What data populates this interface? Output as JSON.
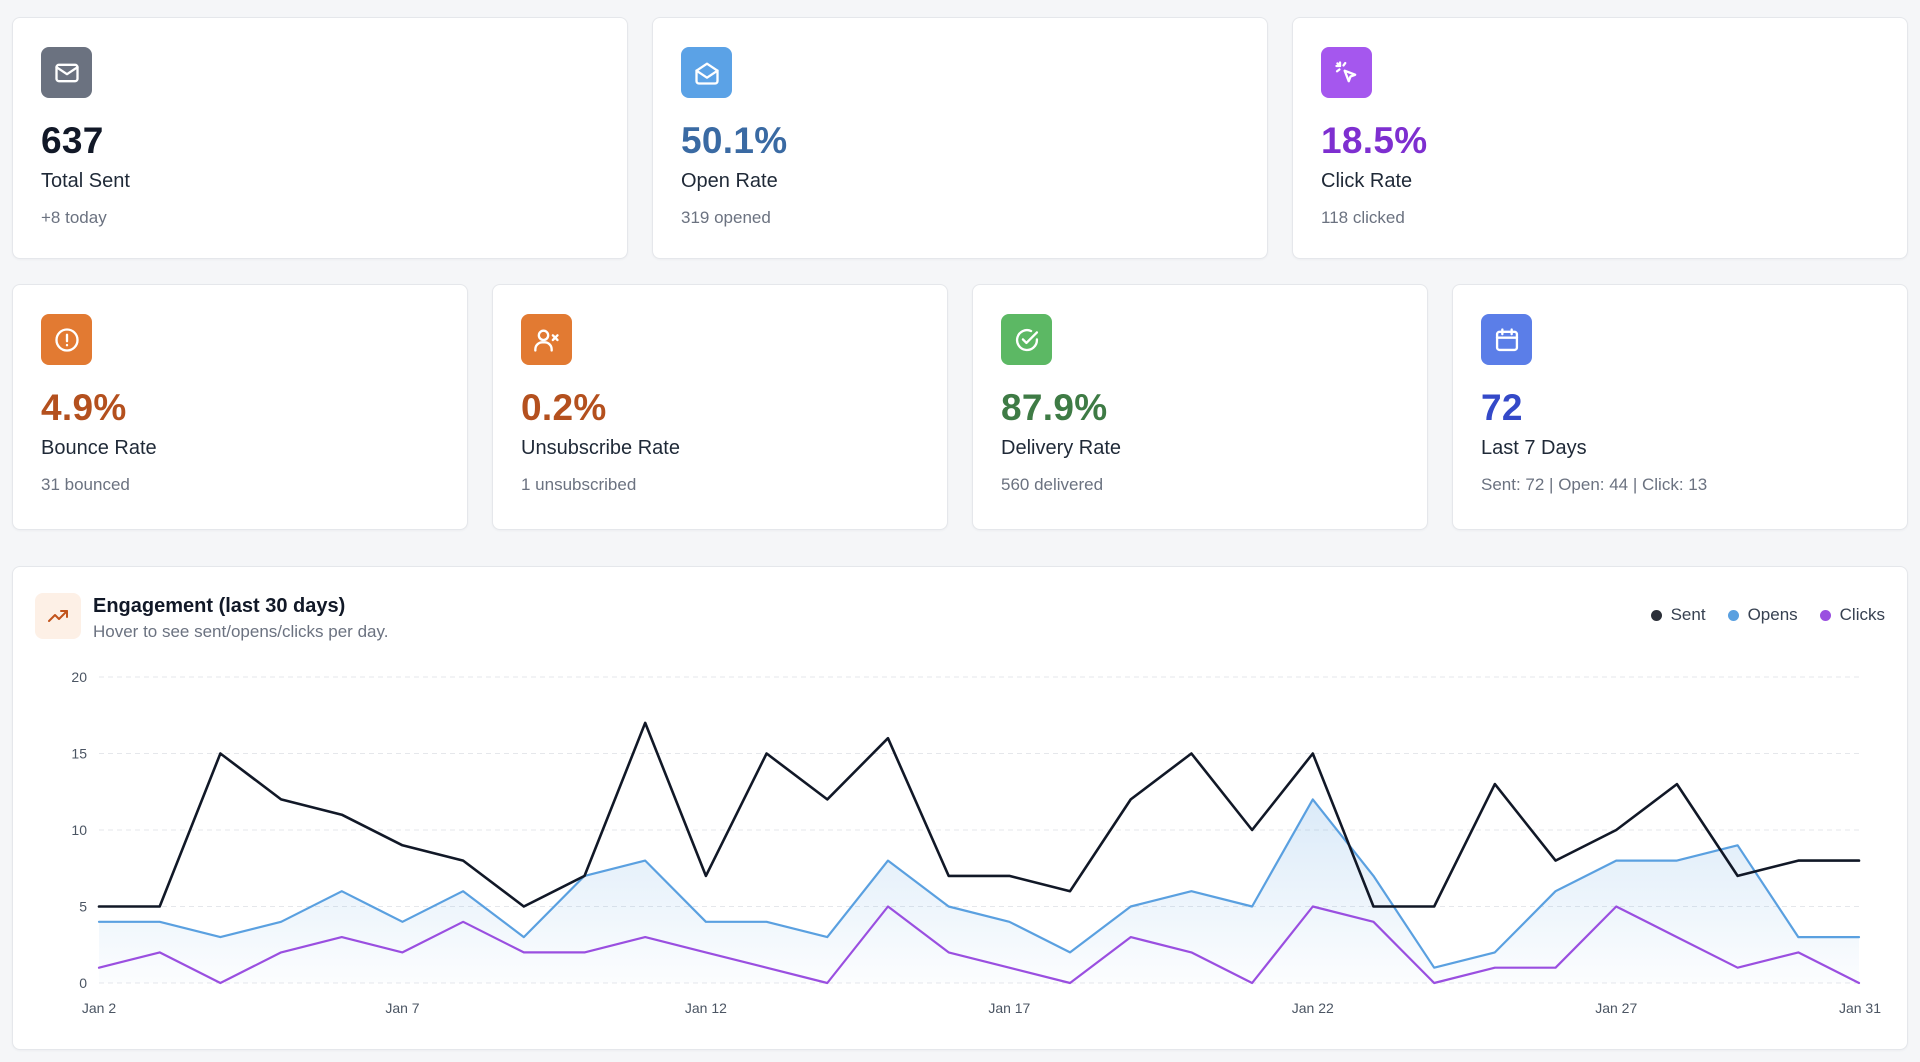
{
  "colors": {
    "total_sent": "#111827",
    "open_rate": "#3a6aa3",
    "click_rate": "#7e2fd0",
    "bounce_rate": "#b4501e",
    "unsubscribe_rate": "#b4501e",
    "delivery_rate": "#3e7b45",
    "last7": "#3449c8",
    "sent_line": "#111827",
    "opens_line": "#5aa0e0",
    "clicks_line": "#9a4fe0"
  },
  "stats": {
    "total_sent": {
      "icon": "mail-icon",
      "value": "637",
      "label": "Total Sent",
      "sub": "+8 today"
    },
    "open_rate": {
      "icon": "mail-open-icon",
      "value": "50.1%",
      "label": "Open Rate",
      "sub": "319 opened"
    },
    "click_rate": {
      "icon": "cursor-click-icon",
      "value": "18.5%",
      "label": "Click Rate",
      "sub": "118 clicked"
    },
    "bounce_rate": {
      "icon": "alert-circle-icon",
      "value": "4.9%",
      "label": "Bounce Rate",
      "sub": "31 bounced"
    },
    "unsubscribe_rate": {
      "icon": "user-x-icon",
      "value": "0.2%",
      "label": "Unsubscribe Rate",
      "sub": "1 unsubscribed"
    },
    "delivery_rate": {
      "icon": "check-circle-icon",
      "value": "87.9%",
      "label": "Delivery Rate",
      "sub": "560 delivered"
    },
    "last7": {
      "icon": "calendar-icon",
      "value": "72",
      "label": "Last 7 Days",
      "sub": "Sent: 72 | Open: 44 | Click: 13"
    }
  },
  "chart": {
    "icon": "trending-up-icon",
    "title": "Engagement (last 30 days)",
    "subtitle": "Hover to see sent/opens/clicks per day."
  },
  "chart_data": {
    "type": "line",
    "x_ticks": [
      "Jan 2",
      "Jan 7",
      "Jan 12",
      "Jan 17",
      "Jan 22",
      "Jan 27",
      "Jan 31"
    ],
    "y_ticks": [
      "0",
      "5",
      "10",
      "15",
      "20"
    ],
    "ylim": [
      0,
      20
    ],
    "grid": true,
    "legend_position": "top-right",
    "x": [
      "Jan 2",
      "Jan 3",
      "Jan 4",
      "Jan 5",
      "Jan 6",
      "Jan 7",
      "Jan 8",
      "Jan 9",
      "Jan 10",
      "Jan 11",
      "Jan 12",
      "Jan 13",
      "Jan 14",
      "Jan 15",
      "Jan 16",
      "Jan 17",
      "Jan 18",
      "Jan 19",
      "Jan 20",
      "Jan 21",
      "Jan 22",
      "Jan 23",
      "Jan 24",
      "Jan 25",
      "Jan 26",
      "Jan 27",
      "Jan 28",
      "Jan 29",
      "Jan 30",
      "Jan 31"
    ],
    "series": [
      {
        "name": "Sent",
        "color": "#111827",
        "values": [
          5,
          5,
          15,
          12,
          11,
          9,
          8,
          5,
          7,
          17,
          7,
          15,
          12,
          16,
          7,
          7,
          6,
          12,
          15,
          10,
          15,
          5,
          5,
          13,
          8,
          10,
          13,
          7,
          8,
          8
        ]
      },
      {
        "name": "Opens",
        "color": "#5aa0e0",
        "values": [
          4,
          4,
          3,
          4,
          6,
          4,
          6,
          3,
          7,
          8,
          4,
          4,
          3,
          8,
          5,
          4,
          2,
          5,
          6,
          5,
          12,
          7,
          1,
          2,
          6,
          8,
          8,
          9,
          3,
          3
        ]
      },
      {
        "name": "Clicks",
        "color": "#9a4fe0",
        "values": [
          1,
          2,
          0,
          2,
          3,
          2,
          4,
          2,
          2,
          3,
          2,
          1,
          0,
          5,
          2,
          1,
          0,
          3,
          2,
          0,
          5,
          4,
          0,
          1,
          1,
          5,
          3,
          1,
          2,
          0
        ]
      }
    ]
  }
}
